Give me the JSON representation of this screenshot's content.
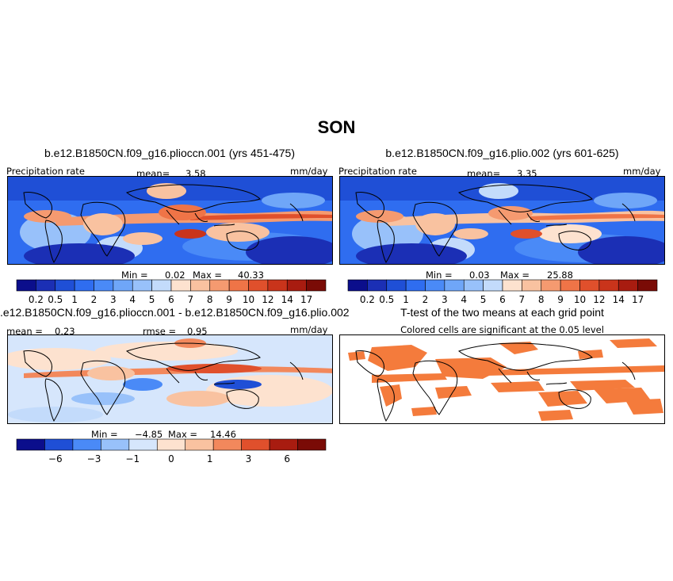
{
  "figure": {
    "title": "SON"
  },
  "colorbar_levels": {
    "main": [
      "0.2",
      "0.5",
      "1",
      "2",
      "3",
      "4",
      "5",
      "6",
      "7",
      "8",
      "9",
      "10",
      "12",
      "14",
      "17"
    ],
    "diff": [
      "−6",
      "−3",
      "−1",
      "0",
      "1",
      "3",
      "6"
    ]
  },
  "colors": {
    "main_scale": [
      "#0b0e8c",
      "#1b2fb5",
      "#1f4fd6",
      "#2f6df0",
      "#4a8af7",
      "#6fa6f8",
      "#98c1fa",
      "#c3dbfb",
      "#fde2cf",
      "#f9c2a0",
      "#f59a70",
      "#ef7447",
      "#e0502c",
      "#c9341b",
      "#a81c10",
      "#7a0b06"
    ],
    "diff_scale": [
      "#0b0e8c",
      "#1f4fd6",
      "#4a8af7",
      "#98c1fa",
      "#d6e6fc",
      "#fde2cf",
      "#f9c2a0",
      "#f2885c",
      "#e0502c",
      "#a81c10",
      "#7a0b06"
    ],
    "ttest_fill": "#f47b3c"
  },
  "panels": {
    "top_left": {
      "title": "b.e12.B1850CN.f09_g16.plioccn.001 (yrs 451-475)",
      "variable": "Precipitation rate",
      "mean_label": "mean=",
      "mean_value": "3.58",
      "units": "mm/day",
      "min_label": "Min =",
      "min_value": "0.02",
      "max_label": "Max =",
      "max_value": "40.33"
    },
    "top_right": {
      "title": "b.e12.B1850CN.f09_g16.plio.002 (yrs 601-625)",
      "variable": "Precipitation rate",
      "mean_label": "mean=",
      "mean_value": "3.35",
      "units": "mm/day",
      "min_label": "Min =",
      "min_value": "0.03",
      "max_label": "Max =",
      "max_value": "25.88"
    },
    "bottom_left": {
      "title": ".e12.B1850CN.f09_g16.plioccn.001 - b.e12.B1850CN.f09_g16.plio.002",
      "mean_label": "mean =",
      "mean_value": "0.23",
      "rmse_label": "rmse =",
      "rmse_value": "0.95",
      "units": "mm/day",
      "min_label": "Min =",
      "min_value": "−4.85",
      "max_label": "Max =",
      "max_value": "14.46"
    },
    "bottom_right": {
      "title": "T-test of the two means at each grid point",
      "subtitle": "Colored cells are significant at the 0.05 level"
    }
  }
}
